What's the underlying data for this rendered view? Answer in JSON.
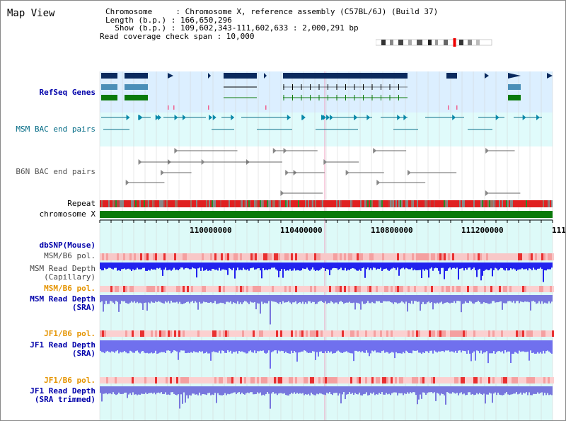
{
  "app": {
    "title": "Map View"
  },
  "info": {
    "chromosome": "Chromosome     : Chromosome X, reference assembly (C57BL/6J) (Build 37)",
    "length": "Length (b.p.) : 166,650,296",
    "show": "  Show (b.p.) : 109,602,343-111,602,633 : 2,000,291 bp",
    "coverage": "Read coverage check span : 10,000"
  },
  "tracks": {
    "refseq": "RefSeq Genes",
    "msm_bac": "MSM BAC end pairs",
    "b6n_bac": "B6N BAC end pairs",
    "repeat": "Repeat",
    "chromosome": "chromosome X",
    "dbsnp": "dbSNP(Mouse)",
    "msm_b6_pol_1": "MSM/B6 pol.",
    "msm_read_depth_cap_1": "MSM Read Depth",
    "msm_read_depth_cap_2": "(Capillary)",
    "msm_b6_pol_2": "MSM/B6 pol.",
    "msm_read_depth_sra_1": "MSM Read Depth",
    "msm_read_depth_sra_2": "(SRA)",
    "jf1_b6_pol_1": "JF1/B6 pol.",
    "jf1_read_depth_sra_1": "JF1 Read Depth",
    "jf1_read_depth_sra_2": "(SRA)",
    "jf1_b6_pol_2": "JF1/B6 pol.",
    "jf1_read_depth_trim_1": "JF1 Read Depth",
    "jf1_read_depth_trim_2": "(SRA trimmed)"
  },
  "axis": {
    "ticks": [
      "110000000",
      "110400000",
      "110800000",
      "111200000",
      "111"
    ]
  },
  "colors": {
    "refseq_bg": "#dcefff",
    "msm_bac_bg": "#e0fbfb",
    "read_bg": "#ddfaf8",
    "chrom_bar": "#0a7a0a",
    "gene_dark": "#0a2a5e",
    "gene_mid": "#4a8fb8",
    "gene_green": "#0a7a0a"
  }
}
